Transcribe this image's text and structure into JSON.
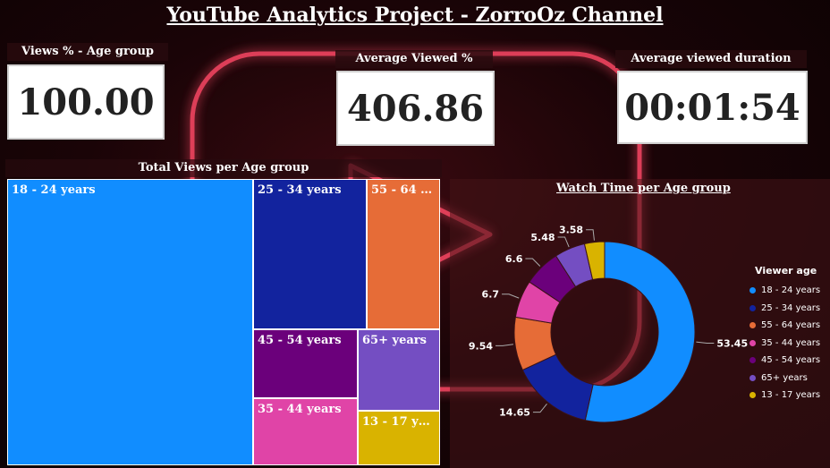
{
  "title": "YouTube Analytics Project - ZorroOz Channel",
  "kpis": [
    {
      "label": "Views % - Age group",
      "value": "100.00"
    },
    {
      "label": "Average Viewed %",
      "value": "406.86"
    },
    {
      "label": "Average viewed duration",
      "value": "00:01:54"
    }
  ],
  "treemap": {
    "title": "Total Views per Age group",
    "tiles": [
      {
        "label": "18 - 24 years",
        "color": "#118DFF"
      },
      {
        "label": "25 - 34 years",
        "color": "#12239E"
      },
      {
        "label": "55 - 64 years",
        "color": "#E66C37"
      },
      {
        "label": "45 - 54 years",
        "color": "#6B007B"
      },
      {
        "label": "65+ years",
        "color": "#744EC2"
      },
      {
        "label": "35 - 44 years",
        "color": "#E044A7"
      },
      {
        "label": "13 - 17 years",
        "color": "#D9B300"
      }
    ]
  },
  "legend_title": "Viewer age",
  "chart_data": {
    "type": "pie",
    "title": "Watch Time per Age group",
    "categories": [
      "18 - 24 years",
      "25 - 34 years",
      "55 - 64 years",
      "35 - 44 years",
      "45 - 54 years",
      "65+ years",
      "13 - 17 years"
    ],
    "values": [
      53.45,
      14.65,
      9.54,
      6.7,
      6.6,
      5.48,
      3.58
    ],
    "labels": [
      "53.45",
      "14.65",
      "9.54",
      "6.7",
      "6.6",
      "5.48",
      "3.58"
    ],
    "colors": [
      "#118DFF",
      "#12239E",
      "#E66C37",
      "#E044A7",
      "#6B007B",
      "#744EC2",
      "#D9B300"
    ],
    "legend": "right"
  }
}
